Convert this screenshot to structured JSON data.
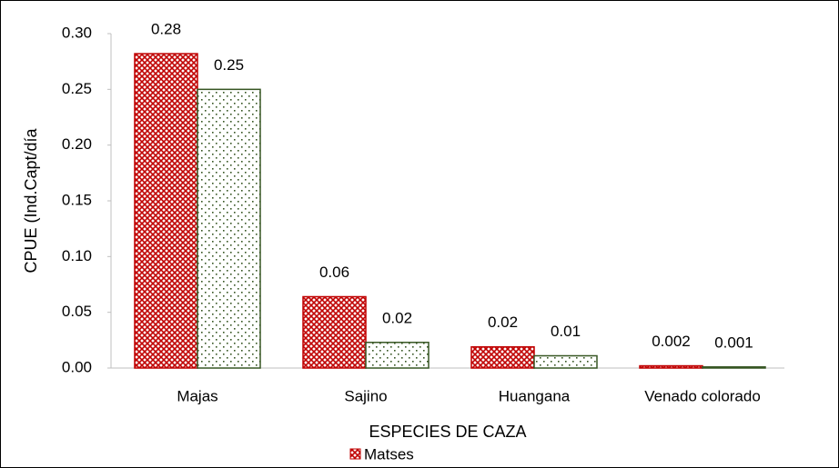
{
  "chart_data": {
    "type": "bar",
    "x_label": "ESPECIES DE CAZA",
    "y_label": "CPUE (Ind.Capt/día",
    "categories": [
      "Majas",
      "Sajino",
      "Huangana",
      "Venado colorado"
    ],
    "series": [
      {
        "name": "Matses",
        "color": "#c00000",
        "values": [
          0.282,
          0.064,
          0.019,
          0.002
        ],
        "value_labels": [
          "0.28",
          "0.06",
          "0.02",
          "0.002"
        ]
      },
      {
        "color": "#375623",
        "values": [
          0.25,
          0.023,
          0.011,
          0.001
        ],
        "value_labels": [
          "0.25",
          "0.02",
          "0.01",
          "0.001"
        ]
      }
    ],
    "ylim": [
      0,
      0.3
    ],
    "yticks": [
      {
        "value": 0,
        "label": "0.00"
      },
      {
        "value": 0.05,
        "label": "0.05"
      },
      {
        "value": 0.1,
        "label": "0.10"
      },
      {
        "value": 0.15,
        "label": "0.15"
      },
      {
        "value": 0.2,
        "label": "0.20"
      },
      0.25,
      {
        "value": 0.3,
        "label": "0.30"
      }
    ],
    "grid": false
  }
}
